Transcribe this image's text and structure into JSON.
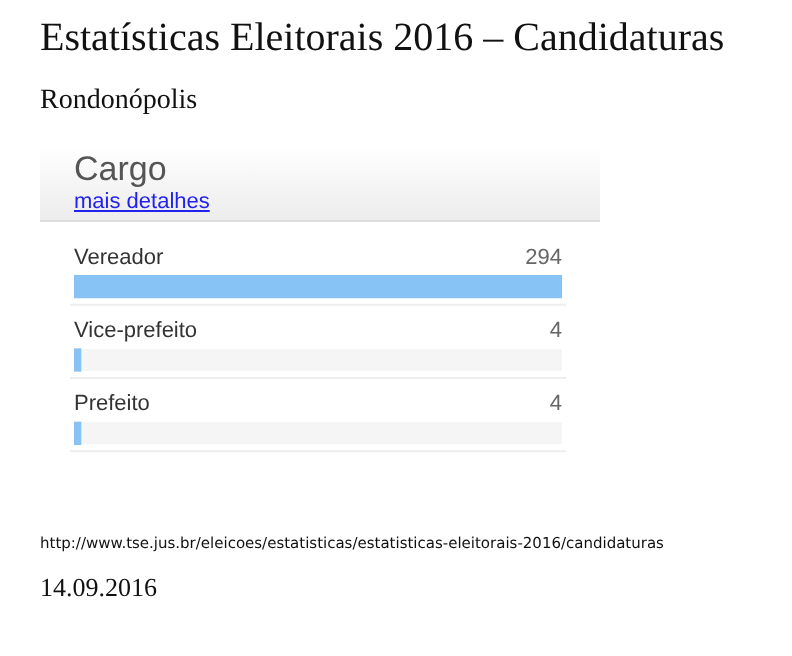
{
  "chart_data": {
    "type": "bar",
    "orientation": "horizontal",
    "title": "Estatísticas Eleitorais 2016 – Candidaturas",
    "subtitle": "Rondonópolis",
    "ylabel": "Cargo",
    "categories": [
      "Vereador",
      "Vice-prefeito",
      "Prefeito"
    ],
    "values": [
      294,
      4,
      4
    ],
    "color": "#88c3f5",
    "xlim": [
      0,
      294
    ],
    "data_labels": true,
    "tick_labels": "y",
    "legend": false,
    "annotations": [
      "mais detalhes",
      "http://www.tse.jus.br/eleicoes/estatisticas/estatisticas-eleitorais-2016/candidaturas",
      "14.09.2016"
    ]
  }
}
